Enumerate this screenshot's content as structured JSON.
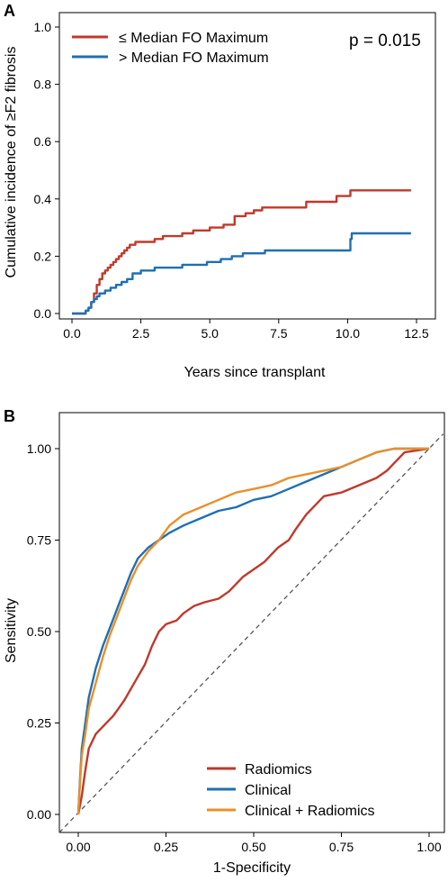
{
  "colors": {
    "red": "#c0392b",
    "blue": "#1f6fb2",
    "orange": "#e8902b",
    "axis": "#000000",
    "diag": "#555555"
  },
  "chart_data": [
    {
      "panel_label": "A",
      "type": "line",
      "step": true,
      "title": "",
      "xlabel": "Years since transplant",
      "ylabel": "Cumulative incidence of ≥F2 fibrosis",
      "xlim": [
        0,
        12.5
      ],
      "ylim": [
        0,
        1.0
      ],
      "xticks": [
        0,
        2.5,
        5,
        7.5,
        10,
        12.5
      ],
      "xtick_labels": [
        "0.0",
        "2.5",
        "5.0",
        "7.5",
        "10.0",
        "12.5"
      ],
      "yticks": [
        0,
        0.2,
        0.4,
        0.6,
        0.8,
        1.0
      ],
      "ytick_labels": [
        "0.0",
        "0.2",
        "0.4",
        "0.6",
        "0.8",
        "1.0"
      ],
      "annotation": "p = 0.015",
      "legend_position": "top-left",
      "series": [
        {
          "name": "≤ Median FO Maximum",
          "color_key": "red",
          "x": [
            0,
            0.5,
            0.6,
            0.7,
            0.8,
            0.9,
            1.0,
            1.1,
            1.2,
            1.3,
            1.4,
            1.5,
            1.6,
            1.7,
            1.8,
            1.9,
            2.0,
            2.1,
            2.2,
            2.3,
            2.5,
            3.0,
            3.3,
            3.6,
            4.0,
            4.4,
            4.6,
            5.0,
            5.5,
            5.9,
            6.3,
            6.6,
            6.9,
            7.3,
            8.5,
            9.6,
            10.1,
            12.3
          ],
          "y": [
            0,
            0.01,
            0.02,
            0.04,
            0.07,
            0.1,
            0.12,
            0.14,
            0.15,
            0.16,
            0.17,
            0.18,
            0.19,
            0.2,
            0.21,
            0.22,
            0.23,
            0.24,
            0.24,
            0.25,
            0.25,
            0.26,
            0.27,
            0.27,
            0.28,
            0.29,
            0.29,
            0.3,
            0.31,
            0.34,
            0.35,
            0.36,
            0.37,
            0.37,
            0.39,
            0.41,
            0.43,
            0.43
          ]
        },
        {
          "name": "> Median FO Maximum",
          "color_key": "blue",
          "x": [
            0,
            0.5,
            0.6,
            0.7,
            0.8,
            0.9,
            1.0,
            1.2,
            1.4,
            1.6,
            1.8,
            2.0,
            2.2,
            2.5,
            3.0,
            3.6,
            4.0,
            4.4,
            4.9,
            5.4,
            5.8,
            6.2,
            6.6,
            7.0,
            9.9,
            10.1,
            10.15,
            12.3
          ],
          "y": [
            0,
            0.01,
            0.02,
            0.04,
            0.05,
            0.06,
            0.07,
            0.08,
            0.09,
            0.1,
            0.11,
            0.12,
            0.14,
            0.15,
            0.16,
            0.16,
            0.17,
            0.17,
            0.18,
            0.19,
            0.2,
            0.21,
            0.21,
            0.22,
            0.22,
            0.26,
            0.28,
            0.28
          ]
        }
      ]
    },
    {
      "panel_label": "B",
      "type": "line",
      "title": "",
      "xlabel": "1-Specificity",
      "ylabel": "Sensitivity",
      "xlim": [
        0,
        1.0
      ],
      "ylim": [
        0,
        1.0
      ],
      "xticks": [
        0,
        0.25,
        0.5,
        0.75,
        1.0
      ],
      "xtick_labels": [
        "0.00",
        "0.25",
        "0.50",
        "0.75",
        "1.00"
      ],
      "yticks": [
        0,
        0.25,
        0.5,
        0.75,
        1.0
      ],
      "ytick_labels": [
        "0.00",
        "0.25",
        "0.50",
        "0.75",
        "1.00"
      ],
      "reference_line": "diagonal",
      "legend_position": "bottom-right",
      "series": [
        {
          "name": "Radiomics",
          "color_key": "red",
          "x": [
            0,
            0.01,
            0.02,
            0.03,
            0.05,
            0.07,
            0.1,
            0.13,
            0.16,
            0.19,
            0.21,
            0.23,
            0.25,
            0.28,
            0.3,
            0.33,
            0.36,
            0.4,
            0.43,
            0.45,
            0.47,
            0.5,
            0.53,
            0.55,
            0.57,
            0.6,
            0.62,
            0.65,
            0.68,
            0.7,
            0.75,
            0.8,
            0.85,
            0.88,
            0.9,
            0.93,
            1.0
          ],
          "x_note": "",
          "y": [
            0,
            0.05,
            0.12,
            0.18,
            0.22,
            0.24,
            0.27,
            0.31,
            0.36,
            0.41,
            0.46,
            0.5,
            0.52,
            0.53,
            0.55,
            0.57,
            0.58,
            0.59,
            0.61,
            0.63,
            0.65,
            0.67,
            0.69,
            0.71,
            0.73,
            0.75,
            0.78,
            0.82,
            0.85,
            0.87,
            0.88,
            0.9,
            0.92,
            0.94,
            0.96,
            0.99,
            1.0
          ]
        },
        {
          "name": "Clinical",
          "color_key": "blue",
          "x": [
            0,
            0.005,
            0.01,
            0.02,
            0.03,
            0.05,
            0.07,
            0.09,
            0.11,
            0.13,
            0.15,
            0.17,
            0.2,
            0.23,
            0.26,
            0.3,
            0.35,
            0.4,
            0.45,
            0.5,
            0.55,
            0.6,
            0.65,
            0.7,
            0.75,
            0.8,
            0.85,
            0.9,
            0.95,
            1.0
          ],
          "y": [
            0,
            0.1,
            0.18,
            0.25,
            0.32,
            0.4,
            0.46,
            0.51,
            0.56,
            0.61,
            0.66,
            0.7,
            0.73,
            0.75,
            0.77,
            0.79,
            0.81,
            0.83,
            0.84,
            0.86,
            0.87,
            0.89,
            0.91,
            0.93,
            0.95,
            0.97,
            0.99,
            1.0,
            1.0,
            1.0
          ]
        },
        {
          "name": "Clinical + Radiomics",
          "color_key": "orange",
          "x": [
            0,
            0.005,
            0.01,
            0.02,
            0.03,
            0.05,
            0.07,
            0.09,
            0.11,
            0.13,
            0.15,
            0.17,
            0.2,
            0.23,
            0.26,
            0.3,
            0.35,
            0.4,
            0.45,
            0.5,
            0.55,
            0.6,
            0.65,
            0.7,
            0.75,
            0.8,
            0.85,
            0.9,
            0.95,
            1.0
          ],
          "y": [
            0,
            0.09,
            0.16,
            0.22,
            0.29,
            0.36,
            0.43,
            0.49,
            0.54,
            0.59,
            0.64,
            0.68,
            0.72,
            0.75,
            0.79,
            0.82,
            0.84,
            0.86,
            0.88,
            0.89,
            0.9,
            0.92,
            0.93,
            0.94,
            0.95,
            0.97,
            0.99,
            1.0,
            1.0,
            1.0
          ]
        }
      ]
    }
  ]
}
